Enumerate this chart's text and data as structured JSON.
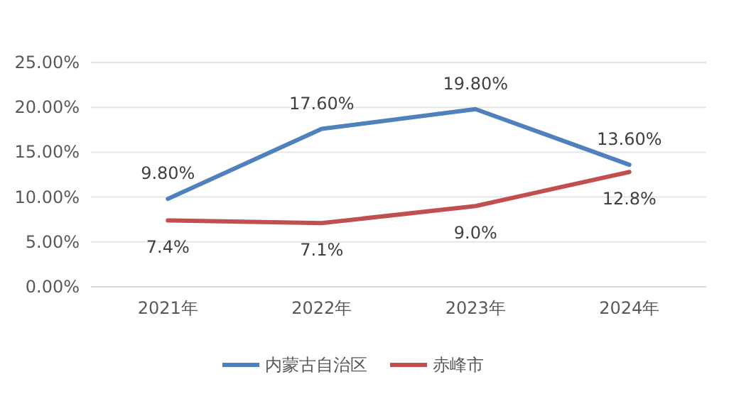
{
  "chart_data": {
    "type": "line",
    "categories": [
      "2021年",
      "2022年",
      "2023年",
      "2024年"
    ],
    "series": [
      {
        "name": "内蒙古自治区",
        "color": "#4f81bd",
        "values": [
          9.8,
          17.6,
          19.8,
          13.6
        ],
        "value_labels": [
          "9.80%",
          "17.60%",
          "19.80%",
          "13.60%"
        ]
      },
      {
        "name": "赤峰市",
        "color": "#c0504d",
        "values": [
          7.4,
          7.1,
          9.0,
          12.8
        ],
        "value_labels": [
          "7.4%",
          "7.1%",
          "9.0%",
          "12.8%"
        ]
      }
    ],
    "ylim": [
      0,
      25
    ],
    "yticks": [
      {
        "value": 0,
        "label": "0.00%"
      },
      {
        "value": 5,
        "label": "5.00%"
      },
      {
        "value": 10,
        "label": "10.00%"
      },
      {
        "value": 15,
        "label": "15.00%"
      },
      {
        "value": 20,
        "label": "20.00%"
      },
      {
        "value": 25,
        "label": "25.00%"
      }
    ],
    "grid": "y",
    "legend": "bottom",
    "marker": "none",
    "line_style": "solid"
  }
}
